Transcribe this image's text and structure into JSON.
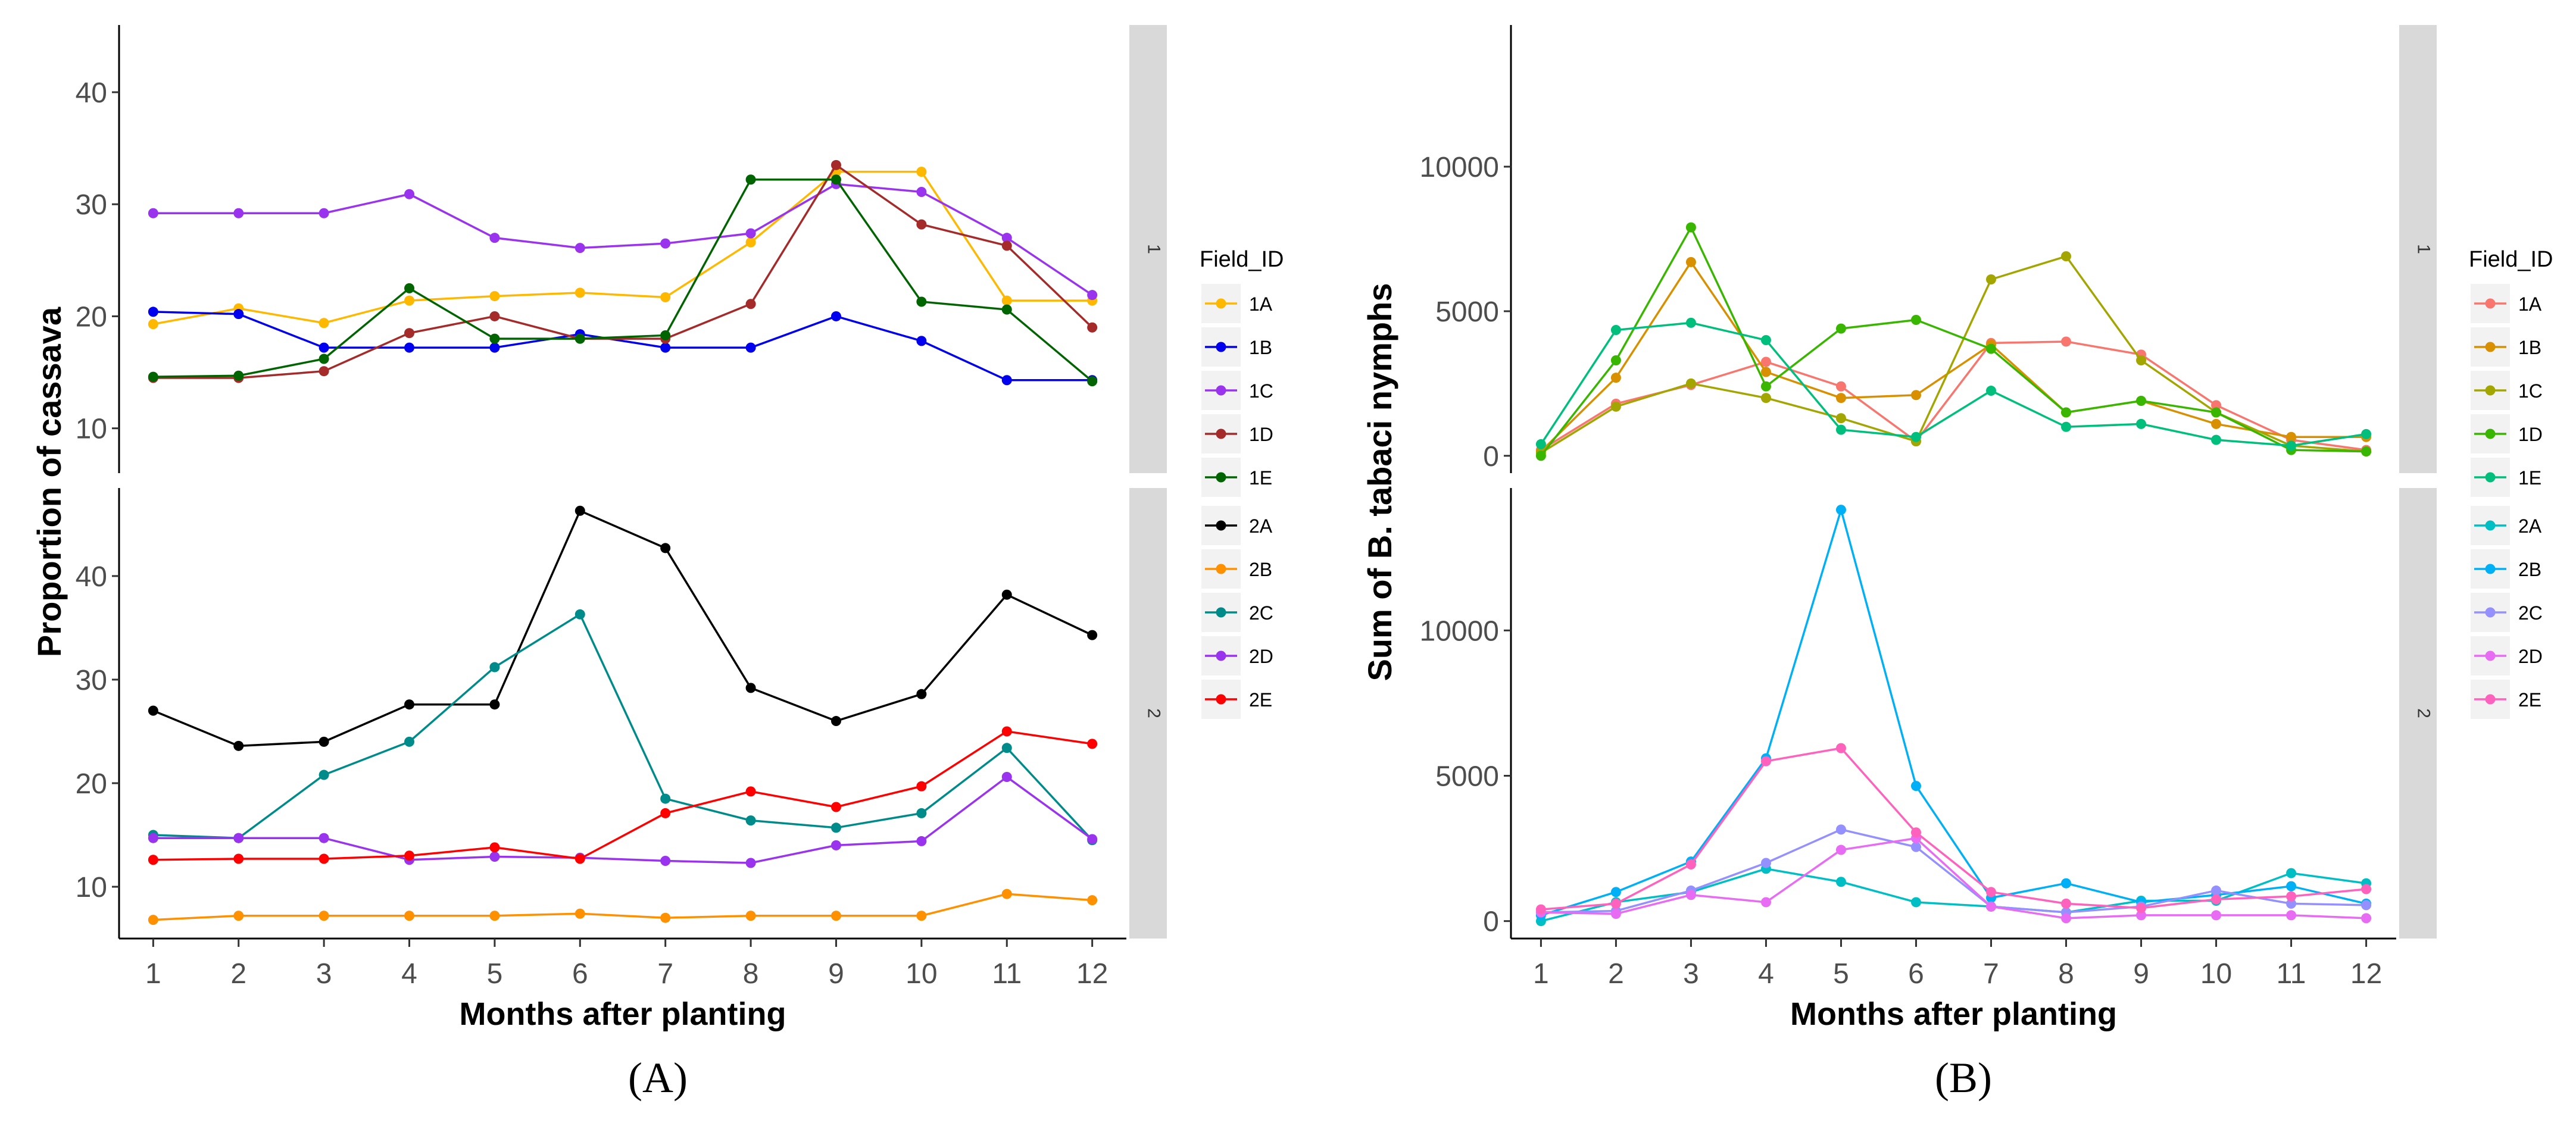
{
  "x_label": "Months after planting",
  "legend_title": "Field_ID",
  "chart_data": [
    {
      "type": "line",
      "panel_caption": "(A)",
      "ylabel": "Proportion of cassava",
      "xlabel": "Months after planting",
      "x": [
        1,
        2,
        3,
        4,
        5,
        6,
        7,
        8,
        9,
        10,
        11,
        12
      ],
      "facets": [
        {
          "label": "1",
          "ylim": [
            6,
            46
          ],
          "yticks": [
            10,
            20,
            30,
            40
          ],
          "series": [
            {
              "name": "1A",
              "color": "#FFB800",
              "values": [
                19.3,
                20.7,
                19.4,
                21.4,
                21.8,
                22.1,
                21.7,
                26.6,
                32.9,
                32.9,
                21.4,
                21.4
              ]
            },
            {
              "name": "1B",
              "color": "#0000EE",
              "values": [
                20.4,
                20.2,
                17.2,
                17.2,
                17.2,
                18.4,
                17.2,
                17.2,
                20.0,
                17.8,
                14.3,
                14.3
              ]
            },
            {
              "name": "1C",
              "color": "#9933EE",
              "values": [
                29.2,
                29.2,
                29.2,
                30.9,
                27.0,
                26.1,
                26.5,
                27.4,
                31.8,
                31.1,
                27.0,
                21.9
              ]
            },
            {
              "name": "1D",
              "color": "#A52A2A",
              "values": [
                14.5,
                14.5,
                15.1,
                18.5,
                20.0,
                18.0,
                18.0,
                21.1,
                33.5,
                28.2,
                26.3,
                19.0
              ]
            },
            {
              "name": "1E",
              "color": "#006400",
              "values": [
                14.6,
                14.7,
                16.2,
                22.5,
                18.0,
                18.0,
                18.3,
                32.2,
                32.2,
                21.3,
                20.6,
                14.2
              ]
            }
          ]
        },
        {
          "label": "2",
          "ylim": [
            5,
            48.5
          ],
          "yticks": [
            10,
            20,
            30,
            40
          ],
          "series": [
            {
              "name": "2A",
              "color": "#000000",
              "values": [
                27.0,
                23.6,
                24.0,
                27.6,
                27.6,
                46.3,
                42.7,
                29.2,
                26.0,
                28.6,
                38.2,
                34.3
              ]
            },
            {
              "name": "2B",
              "color": "#FF9000",
              "values": [
                6.8,
                7.2,
                7.2,
                7.2,
                7.2,
                7.4,
                7.0,
                7.2,
                7.2,
                7.2,
                9.3,
                8.7
              ]
            },
            {
              "name": "2C",
              "color": "#008B8B",
              "values": [
                15.0,
                14.7,
                20.8,
                24.0,
                31.2,
                36.3,
                18.5,
                16.4,
                15.7,
                17.1,
                23.4,
                14.5
              ]
            },
            {
              "name": "2D",
              "color": "#9933EE",
              "values": [
                14.7,
                14.7,
                14.7,
                12.6,
                12.9,
                12.8,
                12.5,
                12.3,
                14.0,
                14.4,
                20.6,
                14.6
              ]
            },
            {
              "name": "2E",
              "color": "#FF0000",
              "values": [
                12.6,
                12.7,
                12.7,
                13.0,
                13.8,
                12.7,
                17.1,
                19.2,
                17.7,
                19.7,
                25.0,
                23.8
              ]
            }
          ]
        }
      ]
    },
    {
      "type": "line",
      "panel_caption": "(B)",
      "ylabel": "Sum of B. tabaci nymphs",
      "xlabel": "Months after planting",
      "x": [
        1,
        2,
        3,
        4,
        5,
        6,
        7,
        8,
        9,
        10,
        11,
        12
      ],
      "facets": [
        {
          "label": "1",
          "ylim": [
            -600,
            14900
          ],
          "yticks": [
            0,
            5000,
            10000
          ],
          "series": [
            {
              "name": "1A",
              "color": "#F8766D",
              "values": [
                200,
                1800,
                2450,
                3250,
                2400,
                500,
                3900,
                3950,
                3500,
                1750,
                550,
                200
              ]
            },
            {
              "name": "1B",
              "color": "#D89000",
              "values": [
                150,
                2700,
                6700,
                2900,
                2000,
                2100,
                3850,
                1500,
                1900,
                1100,
                650,
                650
              ]
            },
            {
              "name": "1C",
              "color": "#A3A500",
              "values": [
                100,
                1700,
                2500,
                2000,
                1300,
                500,
                6100,
                6900,
                3300,
                1500,
                350,
                150
              ]
            },
            {
              "name": "1D",
              "color": "#39B600",
              "values": [
                0,
                3300,
                7900,
                2400,
                4400,
                4700,
                3700,
                1500,
                1900,
                1500,
                200,
                150
              ]
            },
            {
              "name": "1E",
              "color": "#00BF7D",
              "values": [
                400,
                4350,
                4600,
                4000,
                900,
                650,
                2250,
                1000,
                1100,
                550,
                350,
                750
              ]
            }
          ]
        },
        {
          "label": "2",
          "ylim": [
            -600,
            14900
          ],
          "yticks": [
            0,
            5000,
            10000
          ],
          "series": [
            {
              "name": "2A",
              "color": "#00BFC4",
              "values": [
                0,
                650,
                1000,
                1800,
                1350,
                650,
                500,
                300,
                700,
                700,
                1650,
                1300
              ]
            },
            {
              "name": "2B",
              "color": "#00B0F6",
              "values": [
                200,
                1000,
                2050,
                5600,
                14150,
                4650,
                800,
                1300,
                650,
                900,
                1200,
                600
              ]
            },
            {
              "name": "2C",
              "color": "#9590FF",
              "values": [
                300,
                350,
                1050,
                2000,
                3150,
                2550,
                500,
                300,
                500,
                1050,
                600,
                550
              ]
            },
            {
              "name": "2D",
              "color": "#E76BF3",
              "values": [
                300,
                250,
                900,
                650,
                2450,
                2850,
                500,
                100,
                200,
                200,
                200,
                100
              ]
            },
            {
              "name": "2E",
              "color": "#FF62BC",
              "values": [
                400,
                600,
                1950,
                5500,
                5950,
                3050,
                1000,
                600,
                450,
                750,
                850,
                1100
              ]
            }
          ]
        }
      ]
    }
  ]
}
